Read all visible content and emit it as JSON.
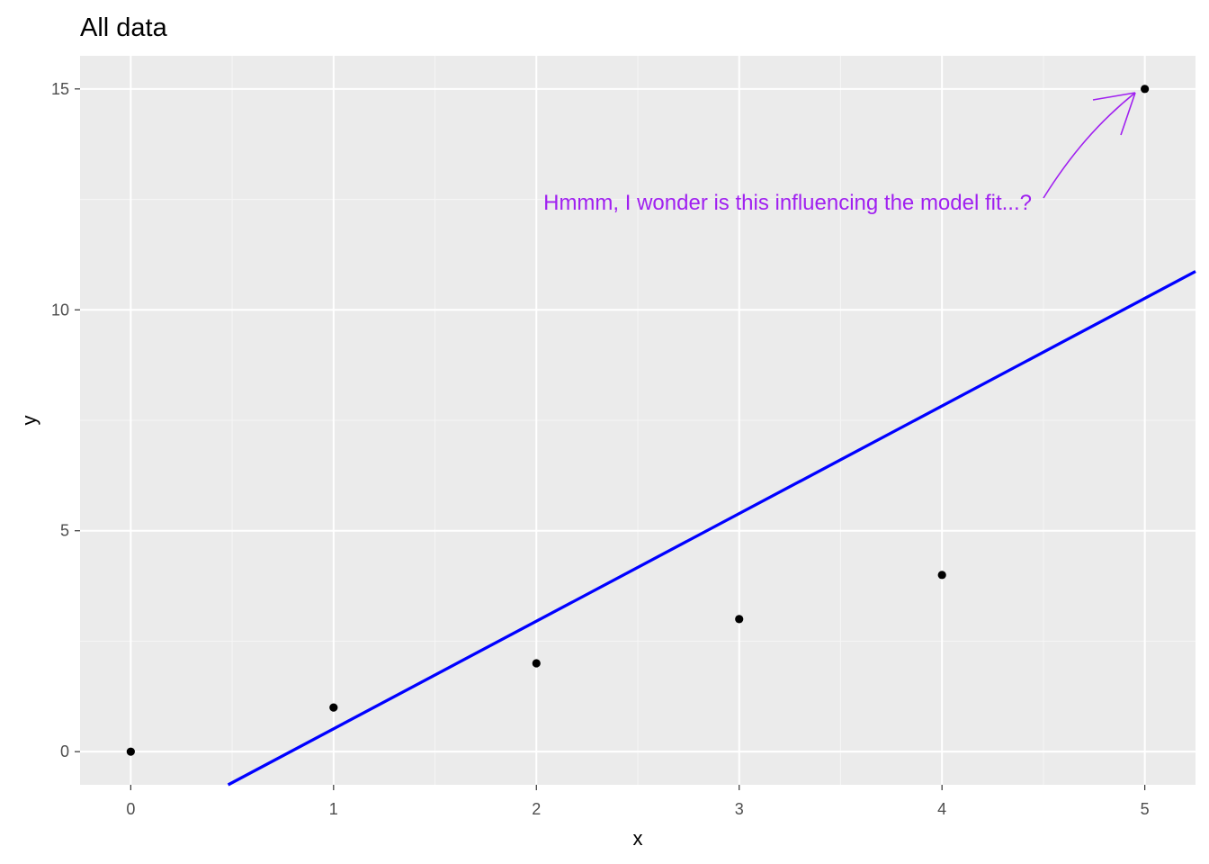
{
  "chart_data": {
    "type": "scatter",
    "title": "All data",
    "xlabel": "x",
    "ylabel": "y",
    "xlim": [
      -0.25,
      5.25
    ],
    "ylim": [
      -0.75,
      15.75
    ],
    "x_ticks": [
      0,
      1,
      2,
      3,
      4,
      5
    ],
    "y_ticks": [
      0,
      5,
      10,
      15
    ],
    "x_minor_ticks": [
      0.5,
      1.5,
      2.5,
      3.5,
      4.5
    ],
    "y_minor_ticks": [
      2.5,
      7.5,
      12.5
    ],
    "grid": true,
    "series": [
      {
        "points": [
          {
            "x": 0,
            "y": 0
          },
          {
            "x": 1,
            "y": 1
          },
          {
            "x": 2,
            "y": 2
          },
          {
            "x": 3,
            "y": 3
          },
          {
            "x": 4,
            "y": 4
          },
          {
            "x": 5,
            "y": 15
          }
        ]
      }
    ],
    "fit_line": {
      "x": [
        0.48,
        5.25
      ],
      "y": [
        -0.75,
        10.87
      ]
    },
    "annotations": [
      {
        "text": "Hmmm, I wonder is this influencing the model fit...?",
        "target": {
          "x": 5,
          "y": 15
        }
      }
    ],
    "colors": {
      "panel_bg": "#ebebeb",
      "grid_major": "#ffffff",
      "grid_minor": "#f5f5f5",
      "point": "#000000",
      "fit_line": "#0000ff",
      "annotation": "#a020f0"
    }
  }
}
